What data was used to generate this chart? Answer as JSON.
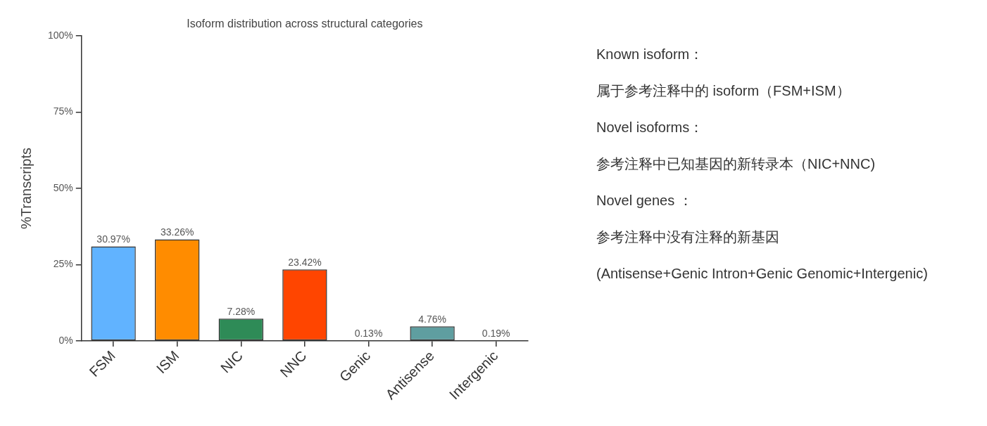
{
  "chart_data": {
    "type": "bar",
    "title": "Isoform distribution across structural categories",
    "ylabel": "%Transcripts",
    "categories": [
      "FSM",
      "ISM",
      "NIC",
      "NNC",
      "Genic",
      "Antisense",
      "Intergenic"
    ],
    "values": [
      30.97,
      33.26,
      7.28,
      23.42,
      0.13,
      4.76,
      0.19
    ],
    "colors": [
      "#61b3ff",
      "#ff8c00",
      "#2e8b57",
      "#ff4500",
      "#333333",
      "#5f9ea0",
      "#333333"
    ],
    "value_labels": [
      "30.97%",
      "33.26%",
      "7.28%",
      "23.42%",
      "0.13%",
      "4.76%",
      "0.19%"
    ],
    "ylim": [
      0,
      100
    ],
    "yticks": [
      {
        "value": 0,
        "label": "0%"
      },
      {
        "value": 25,
        "label": "25%"
      },
      {
        "value": 50,
        "label": "50%"
      },
      {
        "value": 75,
        "label": "75%"
      },
      {
        "value": 100,
        "label": "100%"
      }
    ],
    "grid": false,
    "legend": false,
    "annotations": [
      "Known isoform：",
      "属于参考注释中的 isoform（FSM+ISM）",
      "Novel isoforms：",
      "参考注释中已知基因的新转录本（NIC+NNC)",
      "Novel genes ：",
      "参考注释中没有注释的新基因",
      "(Antisense+Genic Intron+Genic Genomic+Intergenic)"
    ]
  }
}
